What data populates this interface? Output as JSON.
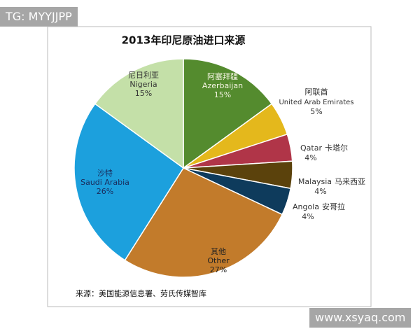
{
  "watermark_top": "TG: MYYJJPP",
  "watermark_bottom": "www.xsyaq.com",
  "chart_data": {
    "type": "pie",
    "title": "2013年印尼原油进口来源",
    "categories": [
      "Azerbaijan",
      "United Arab Emirates",
      "Qatar",
      "Malaysia",
      "Angola",
      "Other",
      "Saudi Arabia",
      "Nigeria"
    ],
    "categories_zh": [
      "阿塞拜疆",
      "阿联酋",
      "卡塔尔",
      "马来西亚",
      "安哥拉",
      "其他",
      "沙特",
      "尼日利亚"
    ],
    "values": [
      15,
      5,
      4,
      4,
      4,
      27,
      26,
      15
    ],
    "value_labels": [
      "15%",
      "5%",
      "4%",
      "4%",
      "4%",
      "27%",
      "26%",
      "15%"
    ],
    "colors": [
      "#548b2e",
      "#e4b81c",
      "#b03548",
      "#5b420c",
      "#0e3b5c",
      "#c27b2b",
      "#1ca0dd",
      "#c4e0a8"
    ],
    "source": "来源：美国能源信息署、劳氏传媒智库"
  }
}
